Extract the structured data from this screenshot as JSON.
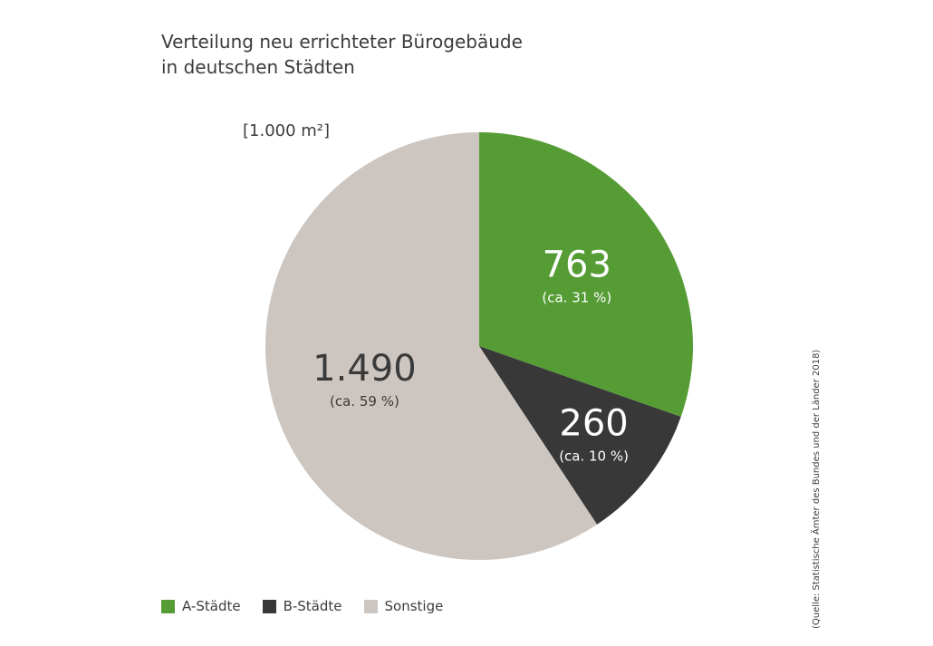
{
  "chart_data": {
    "type": "pie",
    "title_line1": "Verteilung neu errichteter Bürogebäude",
    "title_line2": "in deutschen Städten",
    "unit": "[1.000 m²]",
    "slices": [
      {
        "name": "A-Städte",
        "value": 763,
        "value_label": "763",
        "pct_label": "(ca. 31 %)",
        "color": "#569c35",
        "text_color": "#ffffff"
      },
      {
        "name": "B-Städte",
        "value": 260,
        "value_label": "260",
        "pct_label": "(ca. 10 %)",
        "color": "#383838",
        "text_color": "#ffffff"
      },
      {
        "name": "Sonstige",
        "value": 1490,
        "value_label": "1.490",
        "pct_label": "(ca. 59 %)",
        "color": "#cdc6c0",
        "text_color": "#3a3a3a"
      }
    ],
    "legend_position": "bottom-left",
    "source": "(Quelle: Statistische Ämter des Bundes und der Länder 2018)"
  }
}
